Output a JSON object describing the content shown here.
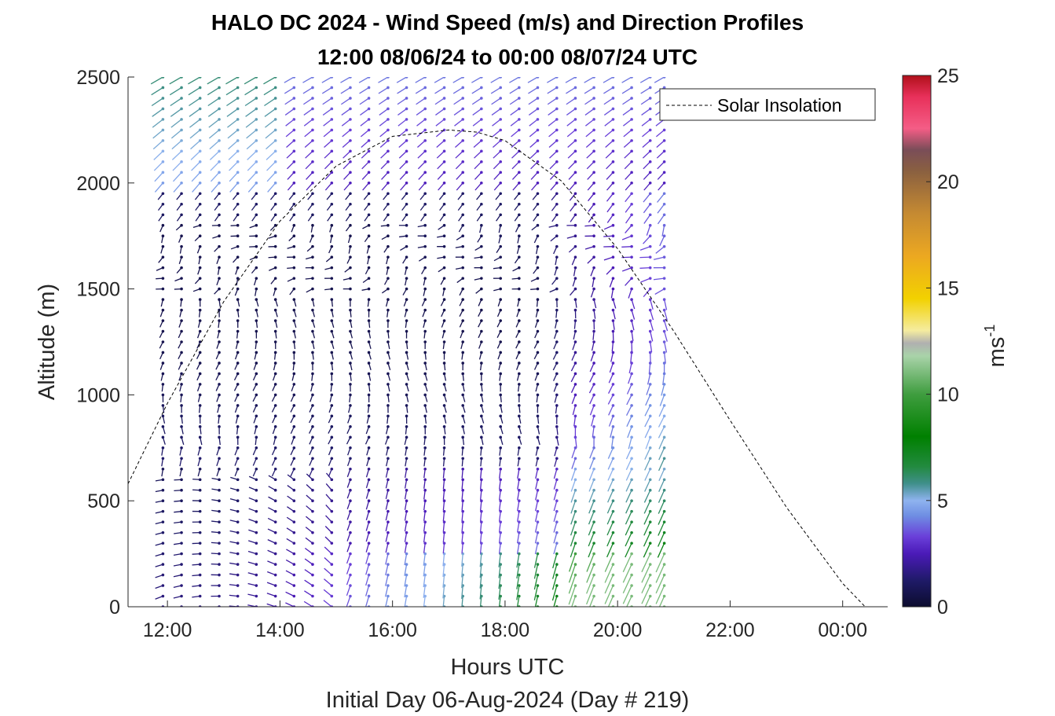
{
  "chart_data": {
    "type": "wind-barb-profile",
    "title": "HALO DC 2024 - Wind Speed (m/s) and Direction Profiles",
    "subtitle": "12:00 08/06/24 to 00:00 08/07/24  UTC",
    "xlabel": "Hours UTC",
    "x_sublabel": "Initial Day 06-Aug-2024 (Day # 219)",
    "ylabel": "Altitude (m)",
    "xlim": [
      11.3,
      24.8
    ],
    "ylim": [
      0,
      2500
    ],
    "x_ticks": [
      12,
      14,
      16,
      18,
      20,
      22,
      24
    ],
    "x_tick_labels": [
      "12:00",
      "14:00",
      "16:00",
      "18:00",
      "20:00",
      "22:00",
      "00:00"
    ],
    "y_ticks": [
      0,
      500,
      1000,
      1500,
      2000,
      2500
    ],
    "y_tick_labels": [
      "0",
      "500",
      "1000",
      "1500",
      "2000",
      "2500"
    ],
    "legend": {
      "placement": "top-right",
      "entries": [
        "Solar Insolation"
      ]
    },
    "colorbar": {
      "label": "ms",
      "label_exponent": "-1",
      "range": [
        0,
        25
      ],
      "ticks": [
        0,
        5,
        10,
        15,
        20,
        25
      ],
      "tick_labels": [
        "0",
        "5",
        "10",
        "15",
        "20",
        "25"
      ],
      "stops": [
        {
          "v": 0,
          "c": "#0c0c2e"
        },
        {
          "v": 1.2,
          "c": "#1e1a66"
        },
        {
          "v": 2.5,
          "c": "#4b1ab8"
        },
        {
          "v": 3.3,
          "c": "#6a3fd9"
        },
        {
          "v": 4.3,
          "c": "#6f8fe3"
        },
        {
          "v": 5.0,
          "c": "#8fb3ef"
        },
        {
          "v": 5.8,
          "c": "#3f8f8a"
        },
        {
          "v": 6.6,
          "c": "#228a3f"
        },
        {
          "v": 8.0,
          "c": "#008000"
        },
        {
          "v": 10.0,
          "c": "#3f9d3f"
        },
        {
          "v": 11.8,
          "c": "#a9d3a9"
        },
        {
          "v": 12.4,
          "c": "#b0b0b0"
        },
        {
          "v": 13.0,
          "c": "#f5ec9f"
        },
        {
          "v": 14.5,
          "c": "#f2d100"
        },
        {
          "v": 16.5,
          "c": "#eca821"
        },
        {
          "v": 18.5,
          "c": "#c58a32"
        },
        {
          "v": 20.5,
          "c": "#8a6040"
        },
        {
          "v": 21.5,
          "c": "#7a4d58"
        },
        {
          "v": 22.5,
          "c": "#f45d86"
        },
        {
          "v": 24.0,
          "c": "#e8305a"
        },
        {
          "v": 25.0,
          "c": "#b0101a"
        }
      ]
    },
    "profile_times": [
      11.92,
      12.25,
      12.58,
      12.92,
      13.25,
      13.58,
      13.92,
      14.25,
      14.58,
      14.92,
      15.25,
      15.58,
      15.92,
      16.25,
      16.58,
      16.92,
      17.25,
      17.58,
      17.92,
      18.25,
      18.58,
      18.92,
      19.25,
      19.58,
      19.92,
      20.25,
      20.58,
      20.83
    ],
    "altitude_step": 50,
    "altitude_range": [
      0,
      2500
    ],
    "solar_insolation": {
      "style": "dashed",
      "color": "#000000",
      "x": [
        11.3,
        12.0,
        13.0,
        14.0,
        15.0,
        16.0,
        17.0,
        17.5,
        18.0,
        19.0,
        20.0,
        21.0,
        22.0,
        23.0,
        24.0,
        24.4,
        24.6
      ],
      "y": [
        580,
        960,
        1440,
        1820,
        2080,
        2220,
        2250,
        2240,
        2200,
        2010,
        1690,
        1300,
        880,
        470,
        110,
        0,
        0
      ]
    }
  }
}
